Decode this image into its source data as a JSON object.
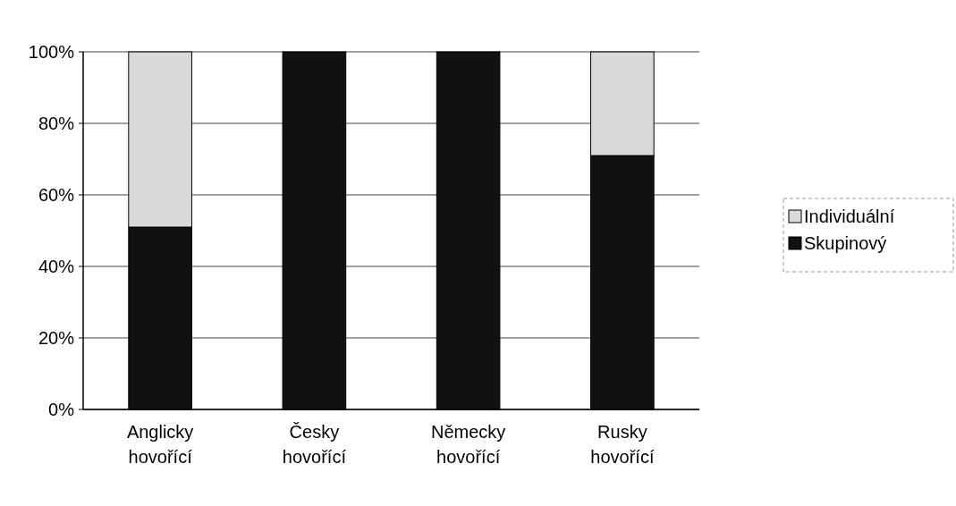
{
  "chart_data": {
    "type": "bar",
    "stacked": true,
    "categories": [
      "Anglicky hovořící",
      "Česky hovořící",
      "Německy hovořící",
      "Rusky hovořící"
    ],
    "series": [
      {
        "name": "Skupinový",
        "color": "#111111",
        "values": [
          51,
          100,
          100,
          71
        ]
      },
      {
        "name": "Individuální",
        "color": "#d9d9d9",
        "values": [
          49,
          0,
          0,
          29
        ]
      }
    ],
    "ylim": [
      0,
      100
    ],
    "yticks": [
      {
        "value": 0,
        "label": "0%"
      },
      {
        "value": 20,
        "label": "20%"
      },
      {
        "value": 40,
        "label": "40%"
      },
      {
        "value": 60,
        "label": "60%"
      },
      {
        "value": 80,
        "label": "80%"
      },
      {
        "value": 100,
        "label": "100%"
      }
    ],
    "grid": "y",
    "legend": "right"
  }
}
